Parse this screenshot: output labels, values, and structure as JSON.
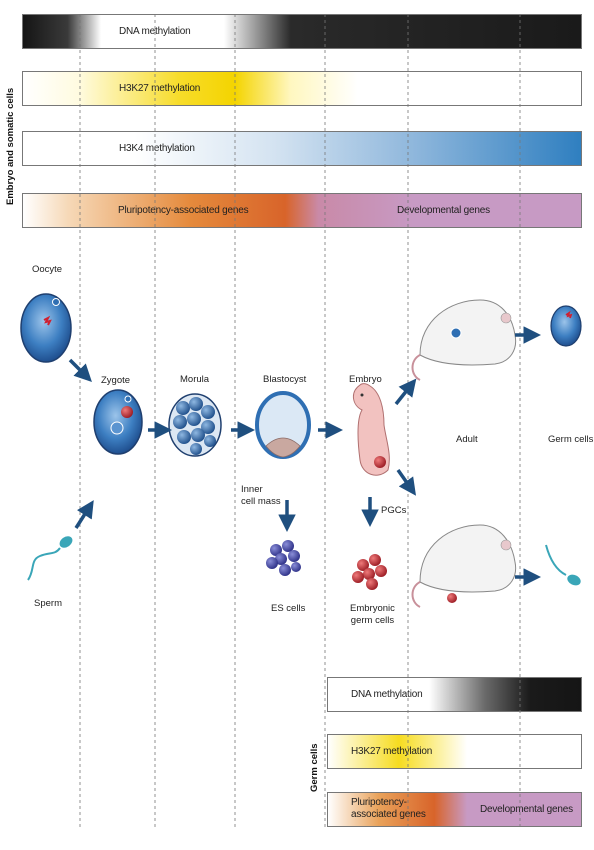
{
  "side_labels": {
    "embryo": "Embryo and somatic cells",
    "germ": "Germ cells"
  },
  "top_bars": {
    "dna_methylation": "DNA methylation",
    "h3k27_methylation": "H3K27 methylation",
    "h3k4_methylation": "H3K4 methylation",
    "pluripotency_genes": "Pluripotency-associated genes",
    "developmental_genes": "Developmental genes"
  },
  "bottom_bars": {
    "dna_methylation": "DNA methylation",
    "h3k27_methylation": "H3K27 methylation",
    "pluripotency_genes": "Pluripotency-\nassociated genes",
    "developmental_genes": "Developmental genes"
  },
  "stages": {
    "oocyte": "Oocyte",
    "zygote": "Zygote",
    "morula": "Morula",
    "blastocyst": "Blastocyst",
    "embryo": "Embryo",
    "adult": "Adult",
    "germ_cells": "Germ cells",
    "sperm": "Sperm",
    "inner_cell_mass": "Inner\ncell mass",
    "es_cells": "ES cells",
    "pgcs": "PGCs",
    "embryonic_germ_cells": "Embryonic\ngerm cells"
  },
  "colors": {
    "cell_blue": "#2f6fb3",
    "cell_red": "#d02030",
    "arrow_blue": "#1f4f7f",
    "yellow": "#f5d800",
    "orange": "#d8642a",
    "purple": "#c79ac4",
    "h3k4_blue": "#2f7fc0"
  }
}
